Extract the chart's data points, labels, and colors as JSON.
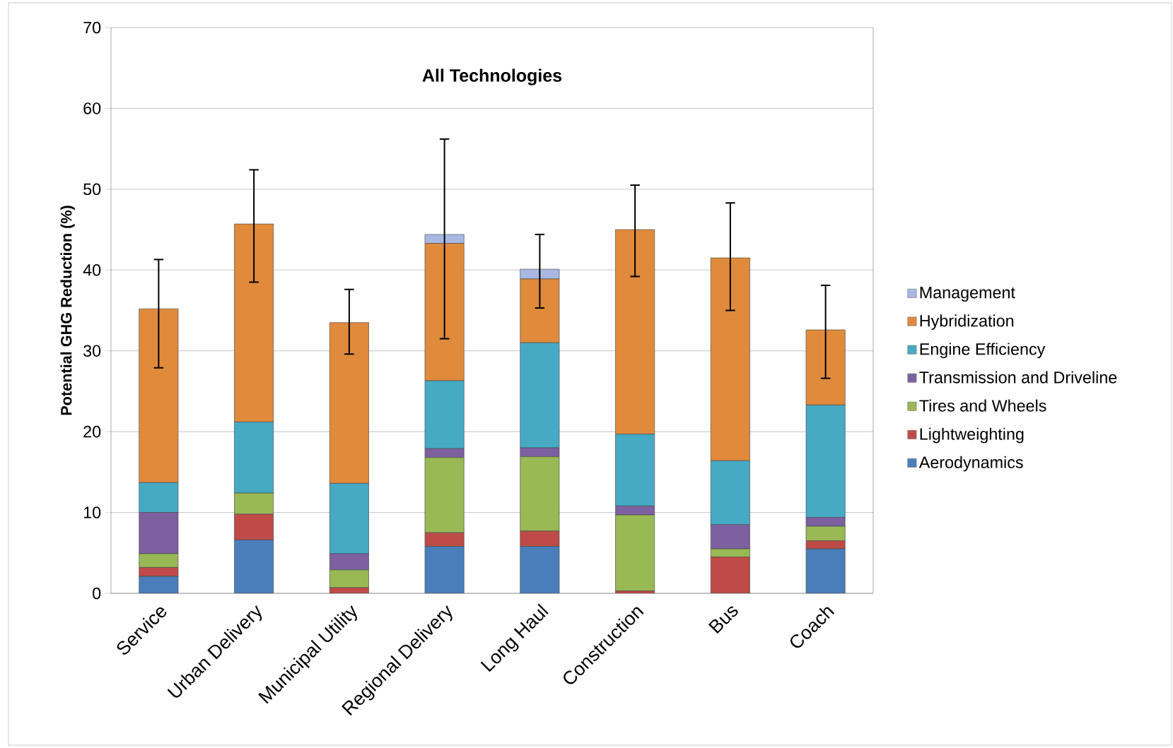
{
  "chart_data": {
    "type": "bar",
    "stacked": true,
    "title": "All Technologies",
    "ylabel": "Potential GHG Reduction (%)",
    "categories": [
      "Service",
      "Urban Delivery",
      "Municipal Utility",
      "Regional Delivery",
      "Long Haul",
      "Construction",
      "Bus",
      "Coach"
    ],
    "series": [
      {
        "name": "Aerodynamics",
        "color": "#4a7ebb",
        "values": [
          2.1,
          6.6,
          0,
          5.8,
          5.8,
          0,
          0,
          5.5
        ]
      },
      {
        "name": "Lightweighting",
        "color": "#be4b48",
        "values": [
          1.1,
          3.2,
          0.7,
          1.7,
          1.9,
          0.3,
          4.5,
          1.0
        ]
      },
      {
        "name": "Tires and Wheels",
        "color": "#98b954",
        "values": [
          1.7,
          2.6,
          2.2,
          9.3,
          9.2,
          9.4,
          1.0,
          1.8
        ]
      },
      {
        "name": "Transmission and Driveline",
        "color": "#7d60a0",
        "values": [
          5.1,
          0,
          2.0,
          1.1,
          1.1,
          1.1,
          3.0,
          1.1
        ]
      },
      {
        "name": "Engine Efficiency",
        "color": "#46aac5",
        "values": [
          3.7,
          8.8,
          8.7,
          8.4,
          13.0,
          8.9,
          7.9,
          13.9
        ]
      },
      {
        "name": "Hybridization",
        "color": "#e08a3c",
        "values": [
          21.5,
          24.5,
          19.9,
          17.0,
          7.9,
          25.3,
          25.1,
          9.3
        ]
      },
      {
        "name": "Management",
        "color": "#a7b9e3",
        "values": [
          0,
          0,
          0,
          1.1,
          1.2,
          0,
          0,
          0
        ],
        "errors": [
          [
            27.9,
            41.3
          ],
          [
            38.5,
            52.4
          ],
          [
            29.6,
            37.6
          ],
          [
            31.5,
            56.2
          ],
          [
            35.3,
            44.4
          ],
          [
            39.2,
            50.5
          ],
          [
            35.0,
            48.3
          ],
          [
            26.6,
            38.1
          ]
        ]
      }
    ],
    "ylim": [
      0,
      70
    ],
    "yticks": [
      0,
      10,
      20,
      30,
      40,
      50,
      60,
      70
    ],
    "grid": "y",
    "legend": "right"
  }
}
